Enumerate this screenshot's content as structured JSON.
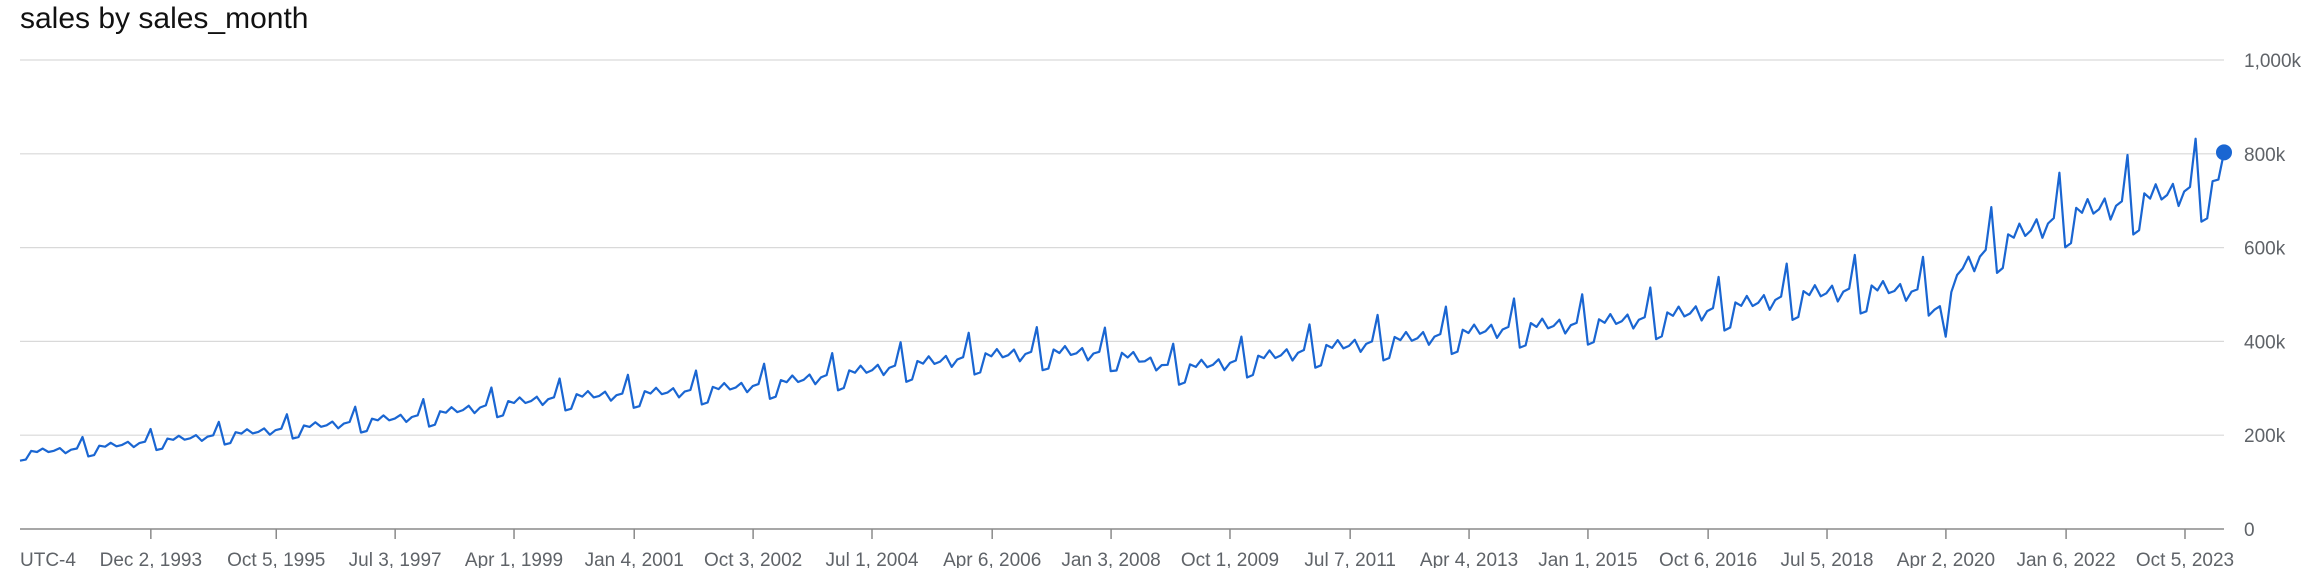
{
  "title": "sales by sales_month",
  "x_axis_note": "UTC-4",
  "colors": {
    "line": "#1a66d2",
    "grid": "#d9d9d9",
    "axis": "#8a8a8a",
    "label": "#5f6368"
  },
  "chart_data": {
    "type": "line",
    "title": "sales by sales_month",
    "xlabel": "",
    "ylabel": "",
    "x_range": [
      "1992-01-01",
      "2024-05-01"
    ],
    "ylim": [
      0,
      1000000
    ],
    "y_ticks": [
      0,
      200000,
      400000,
      600000,
      800000,
      1000000
    ],
    "y_tick_labels": [
      "0",
      "200k",
      "400k",
      "600k",
      "800k",
      "1,000k"
    ],
    "x_ticks": [
      "1993-12-02",
      "1995-10-05",
      "1997-07-03",
      "1999-04-01",
      "2001-01-04",
      "2002-10-03",
      "2004-07-01",
      "2006-04-06",
      "2008-01-03",
      "2009-10-01",
      "2011-07-07",
      "2013-04-04",
      "2015-01-01",
      "2016-10-06",
      "2018-07-05",
      "2020-04-02",
      "2022-01-06",
      "2023-10-05"
    ],
    "x_tick_labels": [
      "Dec 2, 1993",
      "Oct 5, 1995",
      "Jul 3, 1997",
      "Apr 1, 1999",
      "Jan 4, 2001",
      "Oct 3, 2002",
      "Jul 1, 2004",
      "Apr 6, 2006",
      "Jan 3, 2008",
      "Oct 1, 2009",
      "Jul 7, 2011",
      "Apr 4, 2013",
      "Jan 1, 2015",
      "Oct 6, 2016",
      "Jul 5, 2018",
      "Apr 2, 2020",
      "Jan 6, 2022",
      "Oct 5, 2023"
    ],
    "grid": true,
    "legend": "none",
    "highlight_point": {
      "x": "2024-05-01",
      "y": 803000
    },
    "series": [
      {
        "annual_anchors": [
          {
            "year": 1992,
            "value": 160000
          },
          {
            "year": 1993,
            "value": 170000
          },
          {
            "year": 1994,
            "value": 185000
          },
          {
            "year": 1995,
            "value": 198000
          },
          {
            "year": 1996,
            "value": 212000
          },
          {
            "year": 1997,
            "value": 226000
          },
          {
            "year": 1998,
            "value": 240000
          },
          {
            "year": 1999,
            "value": 262000
          },
          {
            "year": 2000,
            "value": 278000
          },
          {
            "year": 2001,
            "value": 284000
          },
          {
            "year": 2002,
            "value": 292000
          },
          {
            "year": 2003,
            "value": 305000
          },
          {
            "year": 2004,
            "value": 325000
          },
          {
            "year": 2005,
            "value": 345000
          },
          {
            "year": 2006,
            "value": 362000
          },
          {
            "year": 2007,
            "value": 372000
          },
          {
            "year": 2008,
            "value": 370000
          },
          {
            "year": 2009,
            "value": 338000
          },
          {
            "year": 2010,
            "value": 355000
          },
          {
            "year": 2011,
            "value": 378000
          },
          {
            "year": 2012,
            "value": 395000
          },
          {
            "year": 2013,
            "value": 410000
          },
          {
            "year": 2014,
            "value": 425000
          },
          {
            "year": 2015,
            "value": 432000
          },
          {
            "year": 2016,
            "value": 445000
          },
          {
            "year": 2017,
            "value": 465000
          },
          {
            "year": 2018,
            "value": 490000
          },
          {
            "year": 2019,
            "value": 505000
          },
          {
            "year": 2020,
            "value": 500000
          },
          {
            "year": 2021,
            "value": 600000
          },
          {
            "year": 2022,
            "value": 660000
          },
          {
            "year": 2023,
            "value": 690000
          },
          {
            "year": 2024,
            "value": 720000
          }
        ],
        "monthly_factors": [
          0.91,
          0.92,
          1.03,
          1.01,
          1.05,
          1.0,
          1.01,
          1.04,
          0.97,
          1.01,
          1.02,
          1.16
        ],
        "overrides": [
          {
            "x": "2020-03",
            "value": 475000
          },
          {
            "x": "2020-04",
            "value": 410000
          },
          {
            "x": "2020-05",
            "value": 505000
          },
          {
            "x": "2024-04",
            "value": 745000
          },
          {
            "x": "2024-05",
            "value": 803000
          }
        ]
      }
    ]
  }
}
